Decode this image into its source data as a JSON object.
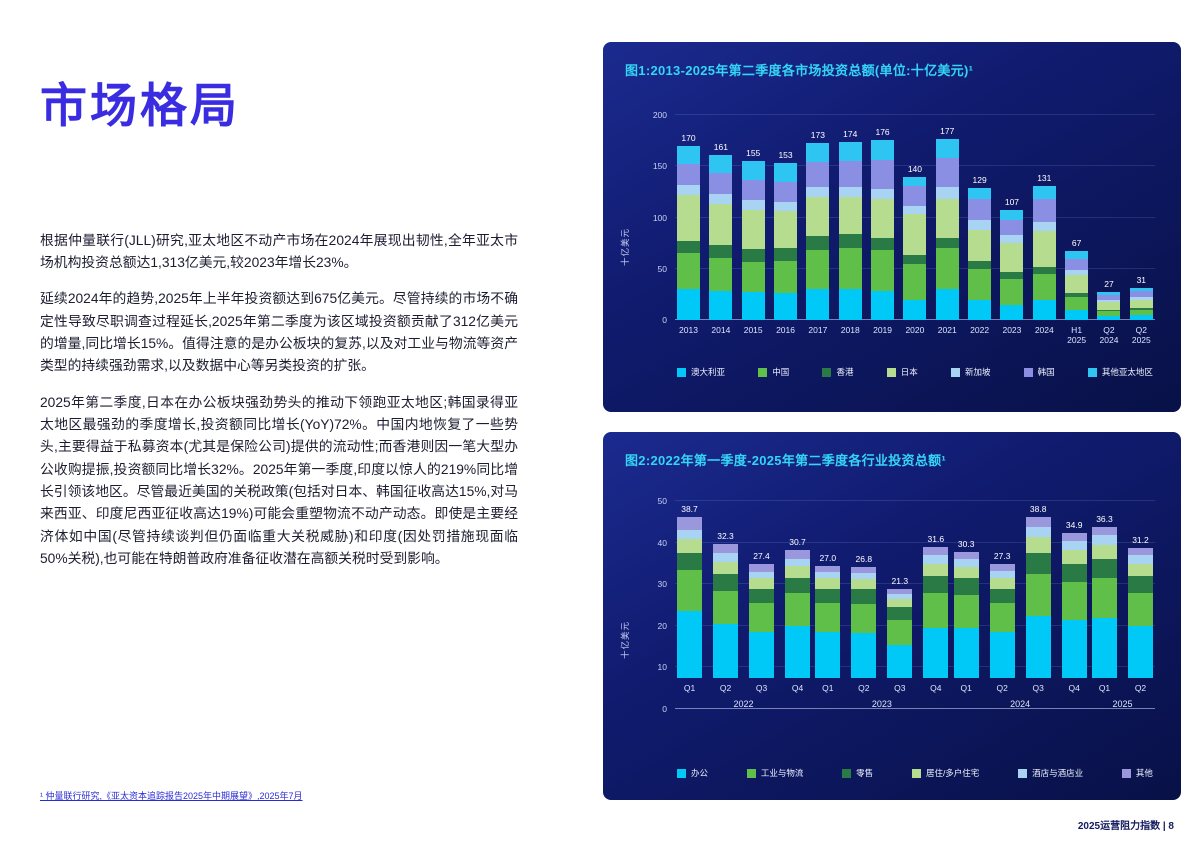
{
  "page": {
    "title": "市场格局",
    "paragraphs": [
      "根据仲量联行(JLL)研究,亚太地区不动产市场在2024年展现出韧性,全年亚太市场机构投资总额达1,313亿美元,较2023年增长23%。",
      "延续2024年的趋势,2025年上半年投资额达到675亿美元。尽管持续的市场不确定性导致尽职调查过程延长,2025年第二季度为该区域投资额贡献了312亿美元的增量,同比增长15%。值得注意的是办公板块的复苏,以及对工业与物流等资产类型的持续强劲需求,以及数据中心等另类投资的扩张。",
      "2025年第二季度,日本在办公板块强劲势头的推动下领跑亚太地区;韩国录得亚太地区最强劲的季度增长,投资额同比增长(YoY)72%。中国内地恢复了一些势头,主要得益于私募资本(尤其是保险公司)提供的流动性;而香港则因一笔大型办公收购提振,投资额同比增长32%。2025年第一季度,印度以惊人的219%同比增长引领该地区。尽管最近美国的关税政策(包括对日本、韩国征收高达15%,对马来西亚、印度尼西亚征收高达19%)可能会重塑物流不动产动态。即使是主要经济体如中国(尽管持续谈判但仍面临重大关税威胁)和印度(因处罚措施现面临50%关税),也可能在特朗普政府准备征收潜在高额关税时受到影响。"
    ],
    "footnote": "¹ 仲量联行研究,《亚太资本追踪报告2025年中期展望》,2025年7月",
    "footer": "2025运营阻力指数 | 8"
  },
  "colors": {
    "accent_blue": "#3a2ce0",
    "chart_title_cyan": "#33d4f5",
    "panel_navy": "#0c1760"
  },
  "chart_data": [
    {
      "type": "bar",
      "stacked": true,
      "title": "图1:2013-2025年第二季度各市场投资总额(单位:十亿美元)¹",
      "ylabel": "十亿美元",
      "ylim": [
        0,
        200
      ],
      "yticks": [
        0,
        50,
        100,
        150,
        200
      ],
      "grid": true,
      "legend_position": "bottom",
      "categories": [
        "2013",
        "2014",
        "2015",
        "2016",
        "2017",
        "2018",
        "2019",
        "2020",
        "2021",
        "2022",
        "2023",
        "2024",
        "H1\n2025",
        "Q2\n2024",
        "Q2\n2025"
      ],
      "totals": [
        "170",
        "161",
        "155",
        "153",
        "173",
        "174",
        "176",
        "140",
        "177",
        "129",
        "107",
        "131",
        "67",
        "27",
        "31"
      ],
      "series": [
        {
          "name": "澳大利亚",
          "color": "#00c9f7",
          "values": [
            30,
            28,
            27,
            26,
            30,
            30,
            28,
            20,
            30,
            20,
            15,
            20,
            10,
            4,
            5
          ]
        },
        {
          "name": "中国",
          "color": "#5fbf49",
          "values": [
            35,
            33,
            30,
            32,
            38,
            40,
            40,
            35,
            40,
            30,
            25,
            25,
            12,
            5,
            5
          ]
        },
        {
          "name": "香港",
          "color": "#2a7a45",
          "values": [
            12,
            12,
            12,
            12,
            14,
            14,
            12,
            8,
            10,
            8,
            7,
            7,
            4,
            1,
            2
          ]
        },
        {
          "name": "日本",
          "color": "#b6dd8f",
          "values": [
            45,
            40,
            38,
            36,
            38,
            36,
            38,
            40,
            38,
            30,
            28,
            35,
            18,
            8,
            8
          ]
        },
        {
          "name": "新加坡",
          "color": "#a9d3f2",
          "values": [
            10,
            10,
            10,
            9,
            10,
            10,
            10,
            8,
            12,
            10,
            8,
            9,
            5,
            2,
            2
          ]
        },
        {
          "name": "韩国",
          "color": "#8b8fe3",
          "values": [
            20,
            20,
            20,
            20,
            24,
            25,
            28,
            20,
            28,
            20,
            15,
            22,
            11,
            4,
            6
          ]
        },
        {
          "name": "其他亚太地区",
          "color": "#2fc5f2",
          "values": [
            18,
            18,
            18,
            18,
            19,
            19,
            20,
            9,
            19,
            11,
            9,
            13,
            7,
            3,
            3
          ]
        }
      ]
    },
    {
      "type": "bar",
      "stacked": true,
      "title": "图2:2022年第一季度-2025年第二季度各行业投资总额¹",
      "ylabel": "十亿美元",
      "ylim": [
        0,
        50
      ],
      "yticks": [
        0,
        10,
        20,
        30,
        40,
        50
      ],
      "grid": true,
      "legend_position": "bottom",
      "categories": [
        "Q1",
        "Q2",
        "Q3",
        "Q4",
        "Q1",
        "Q2",
        "Q3",
        "Q4",
        "Q1",
        "Q2",
        "Q3",
        "Q4",
        "Q1",
        "Q2"
      ],
      "groups": [
        {
          "label": "2022",
          "count": 4
        },
        {
          "label": "2023",
          "count": 4
        },
        {
          "label": "2024",
          "count": 4
        },
        {
          "label": "2025",
          "count": 2
        }
      ],
      "totals": [
        "38.7",
        "32.3",
        "27.4",
        "30.7",
        "27.0",
        "26.8",
        "21.3",
        "31.6",
        "30.3",
        "27.3",
        "38.8",
        "34.9",
        "36.3",
        "31.2"
      ],
      "series": [
        {
          "name": "办公",
          "color": "#00c9f7",
          "values": [
            16,
            13,
            11,
            12.5,
            11,
            10.8,
            8,
            12,
            12,
            11,
            15,
            14,
            14.5,
            12.5
          ]
        },
        {
          "name": "工业与物流",
          "color": "#5fbf49",
          "values": [
            10,
            8,
            7,
            8,
            7,
            7,
            6,
            8.5,
            8,
            7,
            10,
            9,
            9.5,
            8
          ]
        },
        {
          "name": "零售",
          "color": "#2a7a45",
          "values": [
            4,
            4,
            3.5,
            3.5,
            3.5,
            3.5,
            3,
            4,
            4,
            3.5,
            5,
            4.5,
            4.5,
            4
          ]
        },
        {
          "name": "居住/多户住宅",
          "color": "#b6dd8f",
          "values": [
            3.5,
            3,
            2.5,
            3,
            2.5,
            2.5,
            2,
            3,
            2.8,
            2.5,
            3.8,
            3.2,
            3.5,
            3
          ]
        },
        {
          "name": "酒店与酒店业",
          "color": "#a9d3f2",
          "values": [
            2.2,
            2,
            1.6,
            1.7,
            1.5,
            1.5,
            1.3,
            2,
            1.8,
            1.8,
            2.5,
            2.2,
            2.3,
            2
          ]
        },
        {
          "name": "其他",
          "color": "#9b97dd",
          "values": [
            3,
            2.3,
            1.8,
            2,
            1.5,
            1.5,
            1,
            2.1,
            1.7,
            1.5,
            2.5,
            2,
            2,
            1.7
          ]
        }
      ]
    }
  ]
}
